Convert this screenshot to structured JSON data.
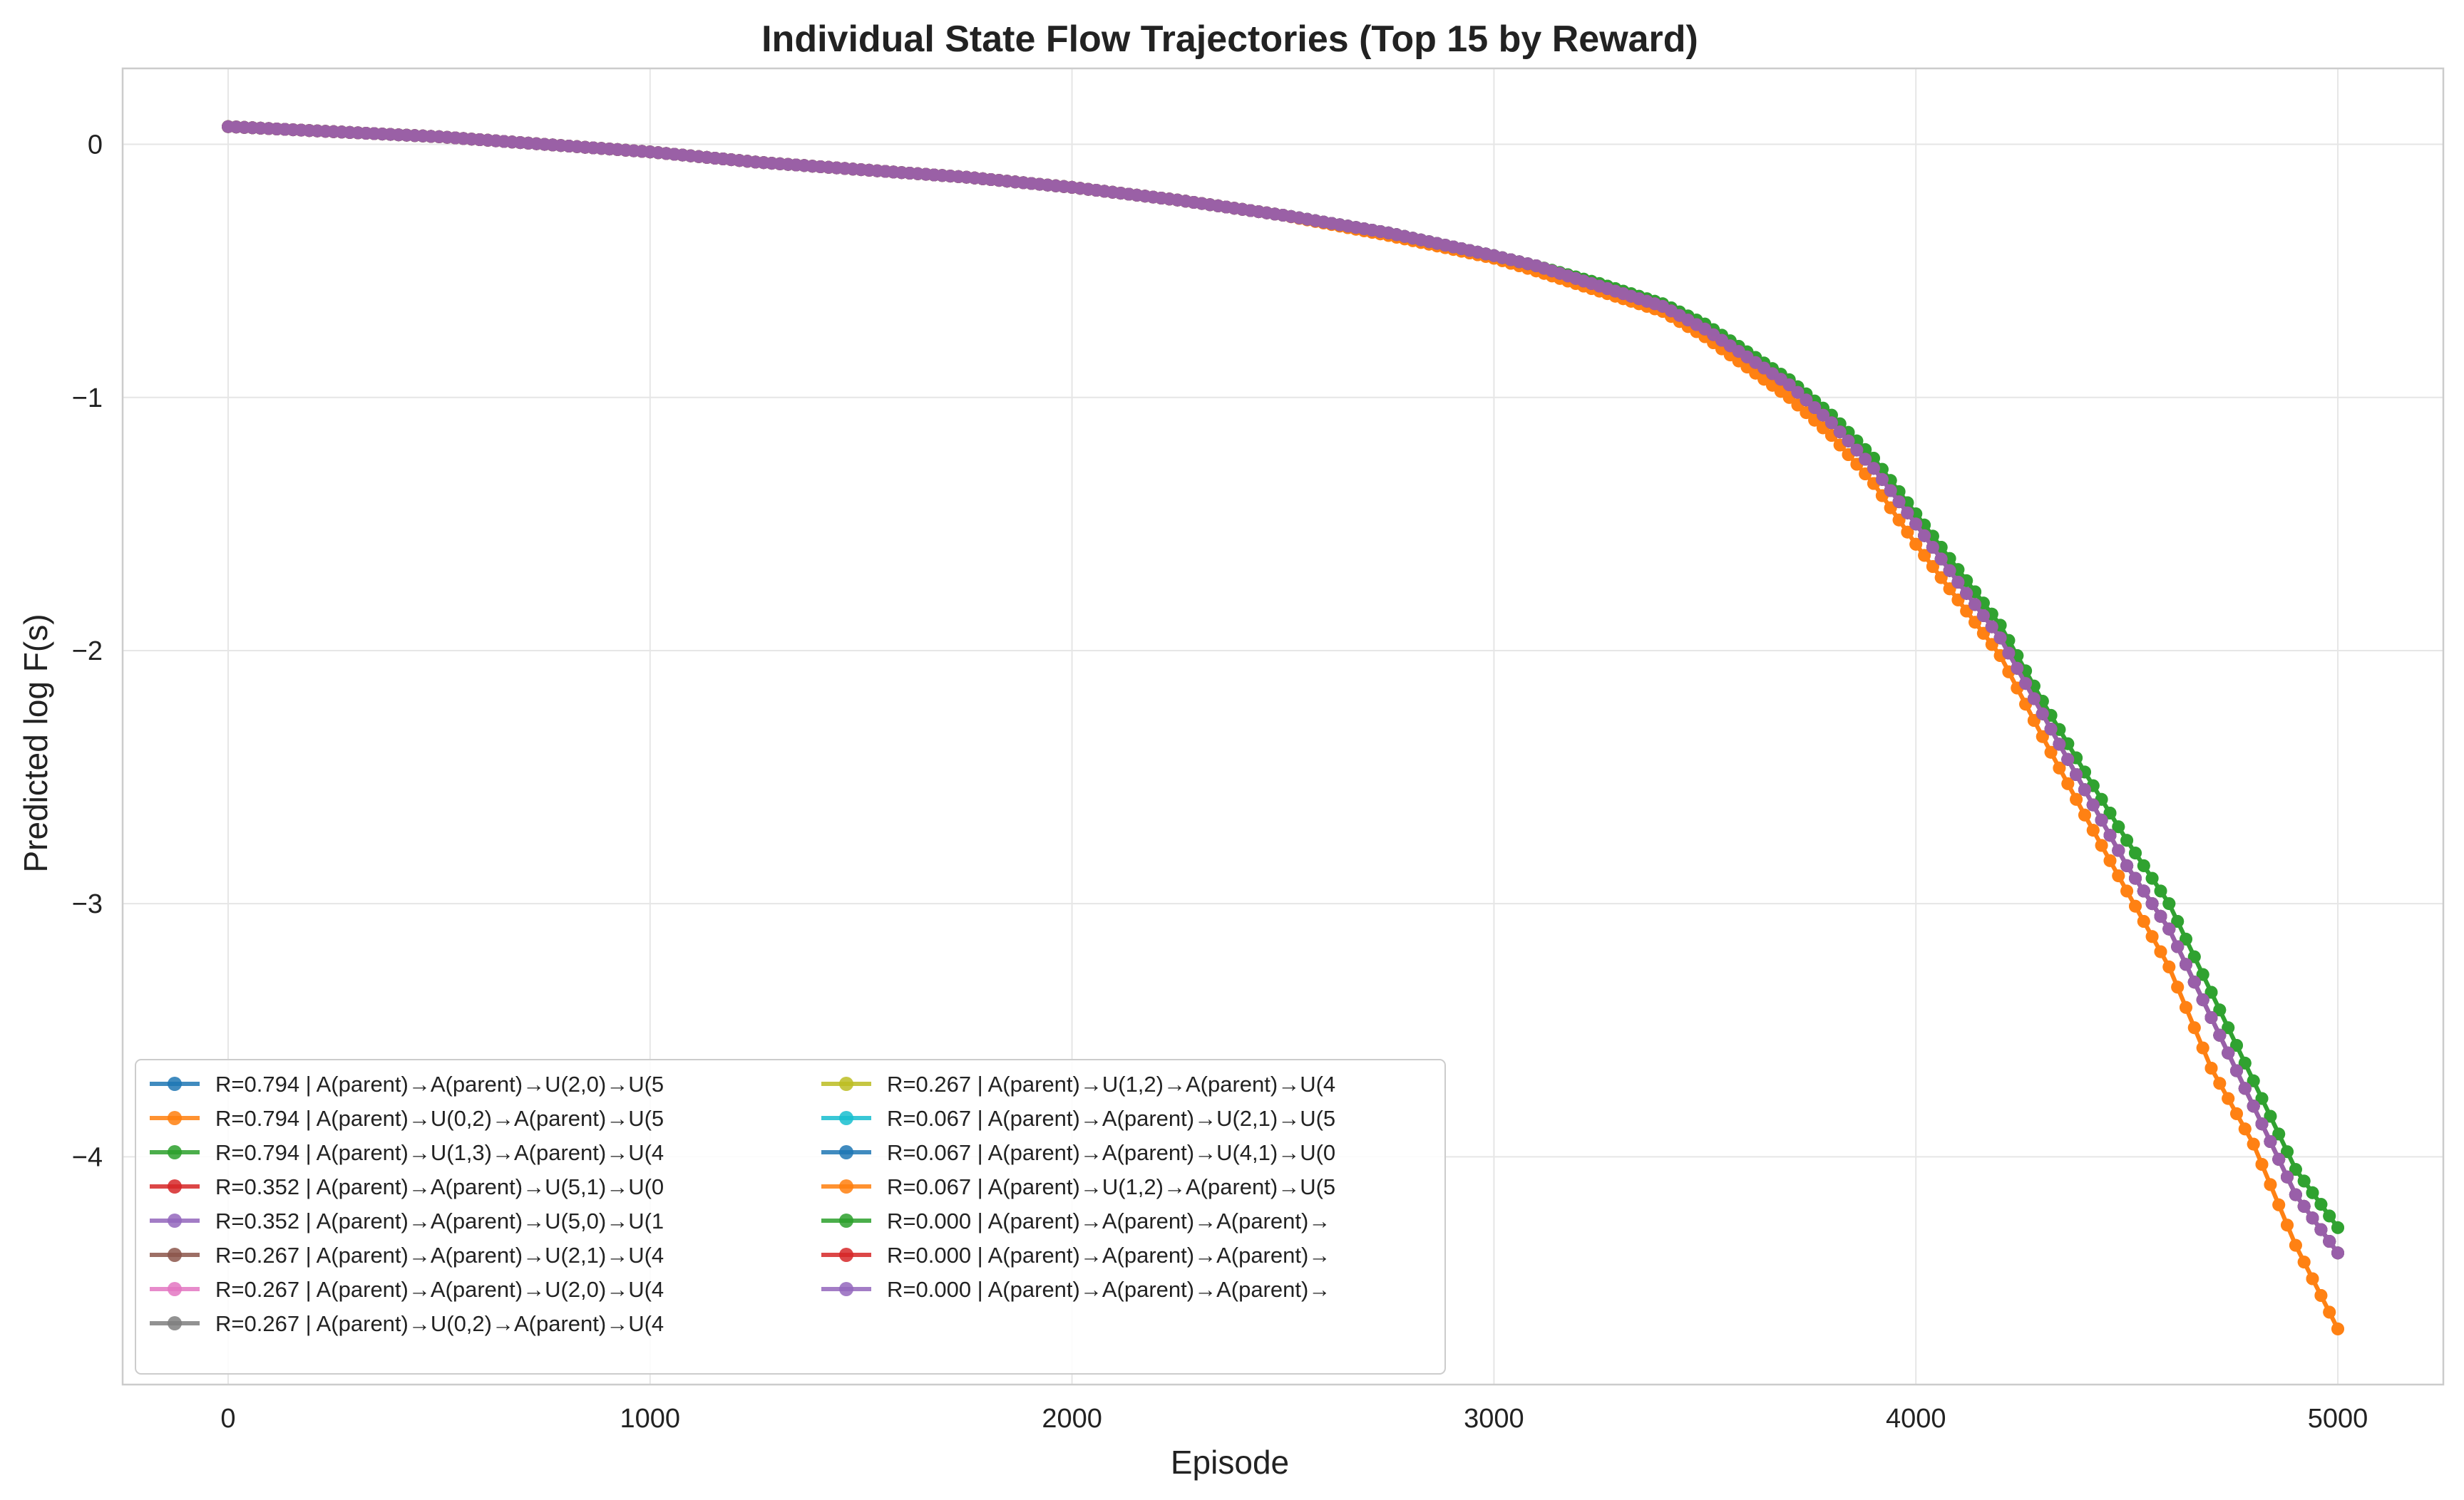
{
  "chart_data": {
    "type": "line",
    "title": "Individual State Flow Trajectories (Top 15 by Reward)",
    "xlabel": "Episode",
    "ylabel": "Predicted log F(s)",
    "xlim": [
      -250,
      5250
    ],
    "ylim": [
      -4.9,
      0.3
    ],
    "xticks": [
      0,
      1000,
      2000,
      3000,
      4000,
      5000
    ],
    "yticks": [
      0,
      -1,
      -2,
      -3,
      -4
    ],
    "xtick_labels": [
      "0",
      "1000",
      "2000",
      "3000",
      "4000",
      "5000"
    ],
    "ytick_labels": [
      "0",
      "−1",
      "−2",
      "−3",
      "−4"
    ],
    "grid": true,
    "legend_position": "lower-left",
    "legend_columns": 2,
    "x": [
      0,
      250,
      500,
      750,
      1000,
      1250,
      1500,
      1750,
      2000,
      2250,
      2500,
      2750,
      3000,
      3100,
      3250,
      3400,
      3500,
      3600,
      3700,
      3800,
      3900,
      4000,
      4100,
      4200,
      4300,
      4400,
      4500,
      4600,
      4700,
      4800,
      4900,
      5000
    ],
    "series": [
      {
        "name": "R=0.794 | A(parent)→A(parent)→U(2,0)→U(5",
        "color": "#1f77b4",
        "values": [
          0.07,
          0.05,
          0.03,
          0.0,
          -0.03,
          -0.07,
          -0.1,
          -0.13,
          -0.17,
          -0.22,
          -0.28,
          -0.35,
          -0.44,
          -0.48,
          -0.56,
          -0.64,
          -0.73,
          -0.84,
          -0.95,
          -1.1,
          -1.28,
          -1.5,
          -1.73,
          -1.95,
          -2.25,
          -2.55,
          -2.85,
          -3.1,
          -3.45,
          -3.8,
          -4.15,
          -4.38
        ]
      },
      {
        "name": "R=0.794 | A(parent)→U(0,2)→A(parent)→U(5",
        "color": "#ff7f0e",
        "values": [
          0.07,
          0.05,
          0.03,
          0.0,
          -0.03,
          -0.07,
          -0.1,
          -0.13,
          -0.17,
          -0.22,
          -0.28,
          -0.36,
          -0.45,
          -0.5,
          -0.58,
          -0.66,
          -0.76,
          -0.88,
          -1.0,
          -1.15,
          -1.34,
          -1.58,
          -1.8,
          -2.02,
          -2.34,
          -2.65,
          -2.95,
          -3.25,
          -3.65,
          -3.95,
          -4.35,
          -4.68
        ]
      },
      {
        "name": "R=0.794 | A(parent)→U(1,3)→A(parent)→U(4",
        "color": "#2ca02c",
        "values": [
          0.07,
          0.05,
          0.03,
          0.0,
          -0.03,
          -0.07,
          -0.1,
          -0.13,
          -0.17,
          -0.22,
          -0.28,
          -0.35,
          -0.44,
          -0.48,
          -0.55,
          -0.63,
          -0.71,
          -0.82,
          -0.93,
          -1.07,
          -1.24,
          -1.46,
          -1.68,
          -1.9,
          -2.2,
          -2.48,
          -2.75,
          -3.0,
          -3.35,
          -3.7,
          -4.05,
          -4.28
        ]
      },
      {
        "name": "R=0.352 | A(parent)→A(parent)→U(5,1)→U(0",
        "color": "#d62728",
        "values": [
          0.07,
          0.05,
          0.03,
          0.0,
          -0.03,
          -0.07,
          -0.1,
          -0.13,
          -0.17,
          -0.22,
          -0.28,
          -0.35,
          -0.44,
          -0.48,
          -0.56,
          -0.64,
          -0.73,
          -0.84,
          -0.95,
          -1.1,
          -1.28,
          -1.5,
          -1.73,
          -1.95,
          -2.25,
          -2.55,
          -2.85,
          -3.1,
          -3.45,
          -3.8,
          -4.15,
          -4.38
        ]
      },
      {
        "name": "R=0.352 | A(parent)→A(parent)→U(5,0)→U(1",
        "color": "#9467bd",
        "values": [
          0.07,
          0.05,
          0.03,
          0.0,
          -0.03,
          -0.07,
          -0.1,
          -0.13,
          -0.17,
          -0.22,
          -0.28,
          -0.35,
          -0.44,
          -0.48,
          -0.56,
          -0.64,
          -0.73,
          -0.84,
          -0.95,
          -1.1,
          -1.28,
          -1.5,
          -1.73,
          -1.95,
          -2.25,
          -2.55,
          -2.85,
          -3.1,
          -3.45,
          -3.8,
          -4.15,
          -4.38
        ]
      },
      {
        "name": "R=0.267 | A(parent)→A(parent)→U(2,1)→U(4",
        "color": "#8c564b",
        "values": [
          0.07,
          0.05,
          0.03,
          0.0,
          -0.03,
          -0.07,
          -0.1,
          -0.13,
          -0.17,
          -0.22,
          -0.28,
          -0.35,
          -0.44,
          -0.48,
          -0.56,
          -0.64,
          -0.73,
          -0.84,
          -0.95,
          -1.1,
          -1.28,
          -1.5,
          -1.73,
          -1.95,
          -2.25,
          -2.55,
          -2.85,
          -3.1,
          -3.45,
          -3.8,
          -4.15,
          -4.38
        ]
      },
      {
        "name": "R=0.267 | A(parent)→A(parent)→U(2,0)→U(4",
        "color": "#e377c2",
        "values": [
          0.07,
          0.05,
          0.03,
          0.0,
          -0.03,
          -0.07,
          -0.1,
          -0.13,
          -0.17,
          -0.22,
          -0.28,
          -0.35,
          -0.44,
          -0.48,
          -0.56,
          -0.64,
          -0.73,
          -0.84,
          -0.95,
          -1.1,
          -1.28,
          -1.5,
          -1.73,
          -1.95,
          -2.25,
          -2.55,
          -2.85,
          -3.1,
          -3.45,
          -3.8,
          -4.15,
          -4.38
        ]
      },
      {
        "name": "R=0.267 | A(parent)→U(0,2)→A(parent)→U(4",
        "color": "#7f7f7f",
        "values": [
          0.07,
          0.05,
          0.03,
          0.0,
          -0.03,
          -0.07,
          -0.1,
          -0.13,
          -0.17,
          -0.22,
          -0.28,
          -0.35,
          -0.44,
          -0.48,
          -0.56,
          -0.64,
          -0.73,
          -0.84,
          -0.95,
          -1.1,
          -1.28,
          -1.5,
          -1.73,
          -1.95,
          -2.25,
          -2.55,
          -2.85,
          -3.1,
          -3.45,
          -3.8,
          -4.15,
          -4.38
        ]
      },
      {
        "name": "R=0.267 | A(parent)→U(1,2)→A(parent)→U(4",
        "color": "#bcbd22",
        "values": [
          0.07,
          0.05,
          0.03,
          0.0,
          -0.03,
          -0.07,
          -0.1,
          -0.13,
          -0.17,
          -0.22,
          -0.28,
          -0.35,
          -0.44,
          -0.48,
          -0.56,
          -0.64,
          -0.73,
          -0.84,
          -0.95,
          -1.1,
          -1.28,
          -1.5,
          -1.73,
          -1.95,
          -2.25,
          -2.55,
          -2.85,
          -3.1,
          -3.45,
          -3.8,
          -4.15,
          -4.38
        ]
      },
      {
        "name": "R=0.067 | A(parent)→A(parent)→U(2,1)→U(5",
        "color": "#17becf",
        "values": [
          0.07,
          0.05,
          0.03,
          0.0,
          -0.03,
          -0.07,
          -0.1,
          -0.13,
          -0.17,
          -0.22,
          -0.28,
          -0.35,
          -0.44,
          -0.48,
          -0.56,
          -0.64,
          -0.73,
          -0.84,
          -0.95,
          -1.1,
          -1.28,
          -1.5,
          -1.73,
          -1.95,
          -2.25,
          -2.55,
          -2.85,
          -3.1,
          -3.45,
          -3.8,
          -4.15,
          -4.38
        ]
      },
      {
        "name": "R=0.067 | A(parent)→A(parent)→U(4,1)→U(0",
        "color": "#1f77b4",
        "values": [
          0.07,
          0.05,
          0.03,
          0.0,
          -0.03,
          -0.07,
          -0.1,
          -0.13,
          -0.17,
          -0.22,
          -0.28,
          -0.35,
          -0.44,
          -0.48,
          -0.56,
          -0.64,
          -0.73,
          -0.84,
          -0.95,
          -1.1,
          -1.28,
          -1.5,
          -1.73,
          -1.95,
          -2.25,
          -2.55,
          -2.85,
          -3.1,
          -3.45,
          -3.8,
          -4.15,
          -4.38
        ]
      },
      {
        "name": "R=0.067 | A(parent)→U(1,2)→A(parent)→U(5",
        "color": "#ff7f0e",
        "values": [
          0.07,
          0.05,
          0.03,
          0.0,
          -0.03,
          -0.07,
          -0.1,
          -0.13,
          -0.17,
          -0.22,
          -0.28,
          -0.36,
          -0.45,
          -0.5,
          -0.58,
          -0.66,
          -0.76,
          -0.88,
          -1.0,
          -1.15,
          -1.34,
          -1.58,
          -1.8,
          -2.02,
          -2.34,
          -2.65,
          -2.95,
          -3.25,
          -3.65,
          -3.95,
          -4.35,
          -4.68
        ]
      },
      {
        "name": "R=0.000 | A(parent)→A(parent)→A(parent)→",
        "color": "#2ca02c",
        "values": [
          0.07,
          0.05,
          0.03,
          0.0,
          -0.03,
          -0.07,
          -0.1,
          -0.13,
          -0.17,
          -0.22,
          -0.28,
          -0.35,
          -0.44,
          -0.48,
          -0.55,
          -0.63,
          -0.71,
          -0.82,
          -0.93,
          -1.07,
          -1.24,
          -1.46,
          -1.68,
          -1.9,
          -2.2,
          -2.48,
          -2.75,
          -3.0,
          -3.35,
          -3.7,
          -4.05,
          -4.28
        ]
      },
      {
        "name": "R=0.000 | A(parent)→A(parent)→A(parent)→",
        "color": "#d62728",
        "values": [
          0.07,
          0.05,
          0.03,
          0.0,
          -0.03,
          -0.07,
          -0.1,
          -0.13,
          -0.17,
          -0.22,
          -0.28,
          -0.35,
          -0.44,
          -0.48,
          -0.56,
          -0.64,
          -0.73,
          -0.84,
          -0.95,
          -1.1,
          -1.28,
          -1.5,
          -1.73,
          -1.95,
          -2.25,
          -2.55,
          -2.85,
          -3.1,
          -3.45,
          -3.8,
          -4.15,
          -4.38
        ]
      },
      {
        "name": "R=0.000 | A(parent)→A(parent)→A(parent)→",
        "color": "#9467bd",
        "values": [
          0.07,
          0.05,
          0.03,
          0.0,
          -0.03,
          -0.07,
          -0.1,
          -0.13,
          -0.17,
          -0.22,
          -0.28,
          -0.35,
          -0.44,
          -0.48,
          -0.56,
          -0.64,
          -0.73,
          -0.84,
          -0.95,
          -1.1,
          -1.28,
          -1.5,
          -1.73,
          -1.95,
          -2.25,
          -2.55,
          -2.85,
          -3.1,
          -3.45,
          -3.8,
          -4.15,
          -4.38
        ]
      }
    ]
  }
}
